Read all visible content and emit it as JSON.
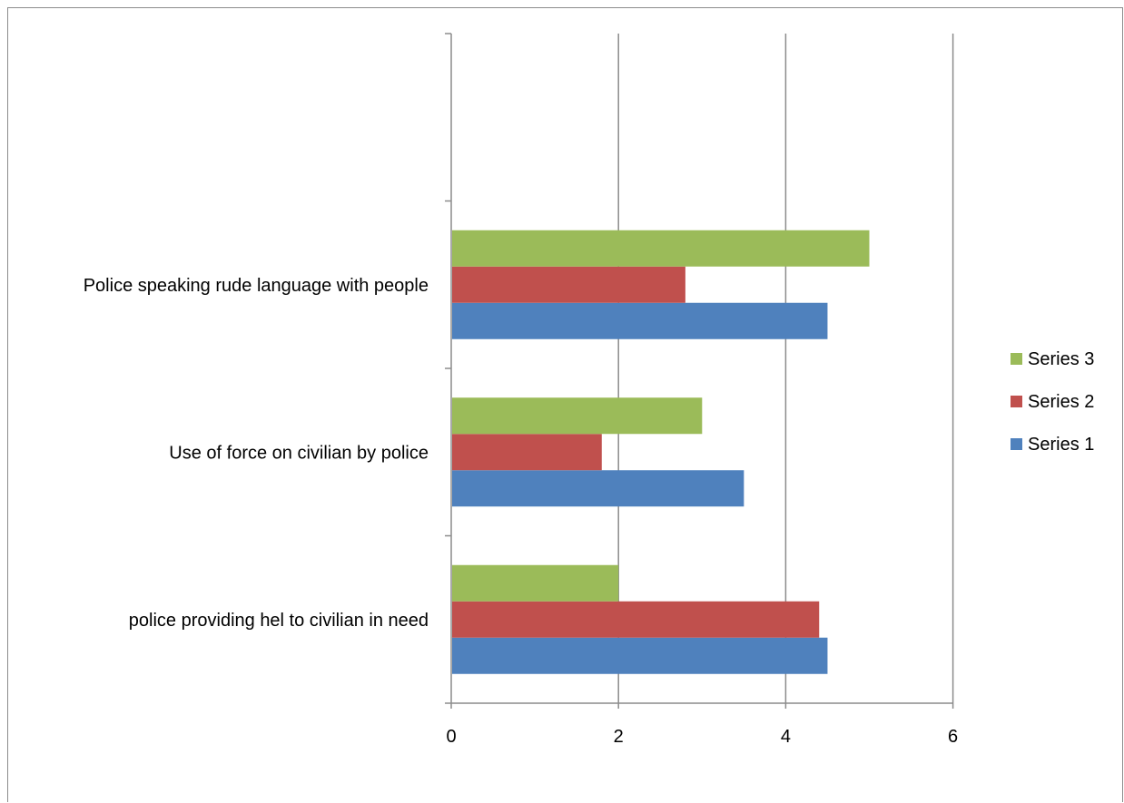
{
  "chart_data": {
    "type": "bar",
    "orientation": "horizontal",
    "categories": [
      "police providing hel to civilian in need",
      "Use of force on civilian by police",
      "Police speaking rude language with people",
      ""
    ],
    "series": [
      {
        "name": "Series 1",
        "color": "#4f81bd",
        "values": [
          4.5,
          3.5,
          4.5,
          null
        ]
      },
      {
        "name": "Series 2",
        "color": "#c0504d",
        "values": [
          4.4,
          1.8,
          2.8,
          null
        ]
      },
      {
        "name": "Series 3",
        "color": "#9bbb59",
        "values": [
          2.0,
          3.0,
          5.0,
          null
        ]
      }
    ],
    "xlim": [
      0,
      6
    ],
    "x_ticks": [
      0,
      2,
      4,
      6
    ],
    "grid": "vertical major gridlines",
    "legend_position": "right",
    "title": "",
    "xlabel": "",
    "ylabel": ""
  }
}
